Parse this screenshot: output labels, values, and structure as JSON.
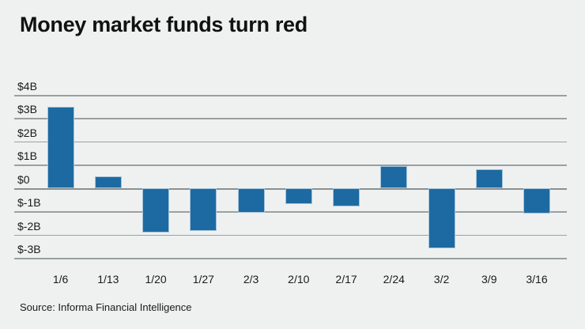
{
  "page": {
    "title": "Money market funds turn red",
    "source": "Source: Informa Financial Intelligence"
  },
  "colors": {
    "background": "#eff1f1",
    "bar": "#1d6aa2",
    "bar_border": "#a5c3da",
    "gridline": "#9aa0a1",
    "zero_line": "#8b9091",
    "title_text": "#111111",
    "label_text": "#1a1a1a"
  },
  "chart_data": {
    "type": "bar",
    "title": "Money market funds turn red",
    "source": "Source: Informa Financial Intelligence",
    "unit": "$B",
    "categories": [
      "1/6",
      "1/13",
      "1/20",
      "1/27",
      "2/3",
      "2/10",
      "2/17",
      "2/24",
      "3/2",
      "3/9",
      "3/16"
    ],
    "values": [
      3.5,
      0.5,
      -1.9,
      -1.85,
      -1.05,
      -0.7,
      -0.8,
      0.95,
      -2.6,
      0.8,
      -1.1
    ],
    "y_ticks": [
      {
        "value": 4,
        "label": "$4B"
      },
      {
        "value": 3,
        "label": "$3B"
      },
      {
        "value": 2,
        "label": "$2B"
      },
      {
        "value": 1,
        "label": "$1B"
      },
      {
        "value": 0,
        "label": "$0"
      },
      {
        "value": -1,
        "label": "$-1B"
      },
      {
        "value": -2,
        "label": "$-2B"
      },
      {
        "value": -3,
        "label": "$-3B"
      }
    ],
    "ylim": [
      -3,
      4
    ],
    "xlabel": "",
    "ylabel": "",
    "grid": true,
    "legend": false
  }
}
